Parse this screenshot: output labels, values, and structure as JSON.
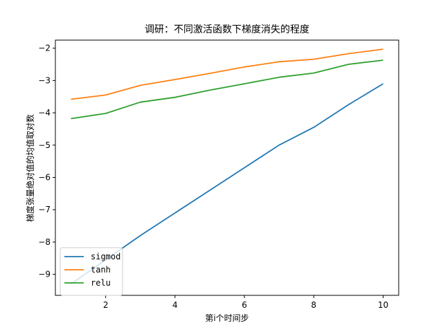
{
  "chart_data": {
    "type": "line",
    "title": "调研：不同激活函数下梯度消失的程度",
    "xlabel": "第i个时间步",
    "ylabel": "梯度张量绝对值的均值取对数",
    "x": [
      1,
      2,
      3,
      4,
      5,
      6,
      7,
      8,
      9,
      10
    ],
    "xlim": [
      0.55,
      10.45
    ],
    "ylim": [
      -9.65,
      -1.75
    ],
    "xticks": [
      2,
      4,
      6,
      8,
      10
    ],
    "yticks": [
      -9,
      -8,
      -7,
      -6,
      -5,
      -4,
      -3,
      -2
    ],
    "grid": false,
    "legend_position": "lower-left",
    "series": [
      {
        "name": "sigmod",
        "color": "#1f77b4",
        "values": [
          -9.3,
          -8.55,
          -7.8,
          -7.1,
          -6.4,
          -5.7,
          -5.0,
          -4.45,
          -3.75,
          -3.1
        ]
      },
      {
        "name": "tanh",
        "color": "#ff7f0e",
        "values": [
          -3.58,
          -3.45,
          -3.15,
          -2.97,
          -2.78,
          -2.58,
          -2.42,
          -2.34,
          -2.17,
          -2.03
        ]
      },
      {
        "name": "relu",
        "color": "#2ca02c",
        "values": [
          -4.18,
          -4.02,
          -3.67,
          -3.52,
          -3.3,
          -3.1,
          -2.9,
          -2.77,
          -2.5,
          -2.37
        ]
      }
    ]
  }
}
